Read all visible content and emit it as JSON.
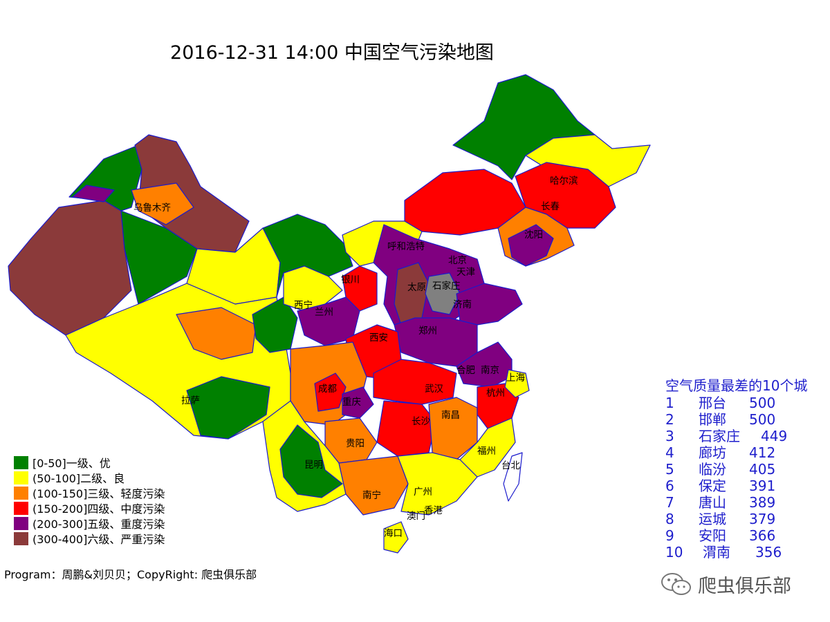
{
  "title": "2016-12-31 14:00 中国空气污染地图",
  "colors": {
    "good": "#008000",
    "moderate": "#ffff00",
    "light": "#ff8000",
    "medium": "#ff0000",
    "heavy": "#800080",
    "severe": "#8b3a3a",
    "nodata": "#808080",
    "border": "#1a1acc",
    "ranking_text": "#1e1ecc"
  },
  "legend": [
    {
      "label": "[0-50]一级、优",
      "color": "#008000"
    },
    {
      "label": "(50-100]二级、良",
      "color": "#ffff00"
    },
    {
      "label": "(100-150]三级、轻度污染",
      "color": "#ff8000"
    },
    {
      "label": "(150-200]四级、中度污染",
      "color": "#ff0000"
    },
    {
      "label": "(200-300]五级、重度污染",
      "color": "#800080"
    },
    {
      "label": "(300-400]六级、严重污染",
      "color": "#8b3a3a"
    }
  ],
  "cities": [
    "乌鲁木齐",
    "哈尔滨",
    "长春",
    "沈阳",
    "呼和浩特",
    "北京",
    "天津",
    "银川",
    "太原",
    "石家庄",
    "西宁",
    "兰州",
    "济南",
    "西安",
    "郑州",
    "合肥",
    "南京",
    "上海",
    "成都",
    "武汉",
    "杭州",
    "重庆",
    "长沙",
    "南昌",
    "拉萨",
    "贵阳",
    "福州",
    "昆明",
    "台北",
    "南宁",
    "广州",
    "澳门",
    "香港",
    "海口"
  ],
  "ranking": {
    "title": "空气质量最差的10个城",
    "items": [
      {
        "rank": "1",
        "city": "邢台",
        "aqi": "500"
      },
      {
        "rank": "2",
        "city": "邯郸",
        "aqi": "500"
      },
      {
        "rank": "3",
        "city": "石家庄",
        "aqi": "449"
      },
      {
        "rank": "4",
        "city": "廊坊",
        "aqi": "412"
      },
      {
        "rank": "5",
        "city": "临汾",
        "aqi": "405"
      },
      {
        "rank": "6",
        "city": "保定",
        "aqi": "391"
      },
      {
        "rank": "7",
        "city": "唐山",
        "aqi": "389"
      },
      {
        "rank": "8",
        "city": "运城",
        "aqi": "379"
      },
      {
        "rank": "9",
        "city": "安阳",
        "aqi": "366"
      },
      {
        "rank": "10",
        "city": "渭南",
        "aqi": "356"
      }
    ]
  },
  "credit": "Program：周鹏&刘贝贝；CopyRight: 爬虫俱乐部",
  "watermark": "爬虫俱乐部"
}
